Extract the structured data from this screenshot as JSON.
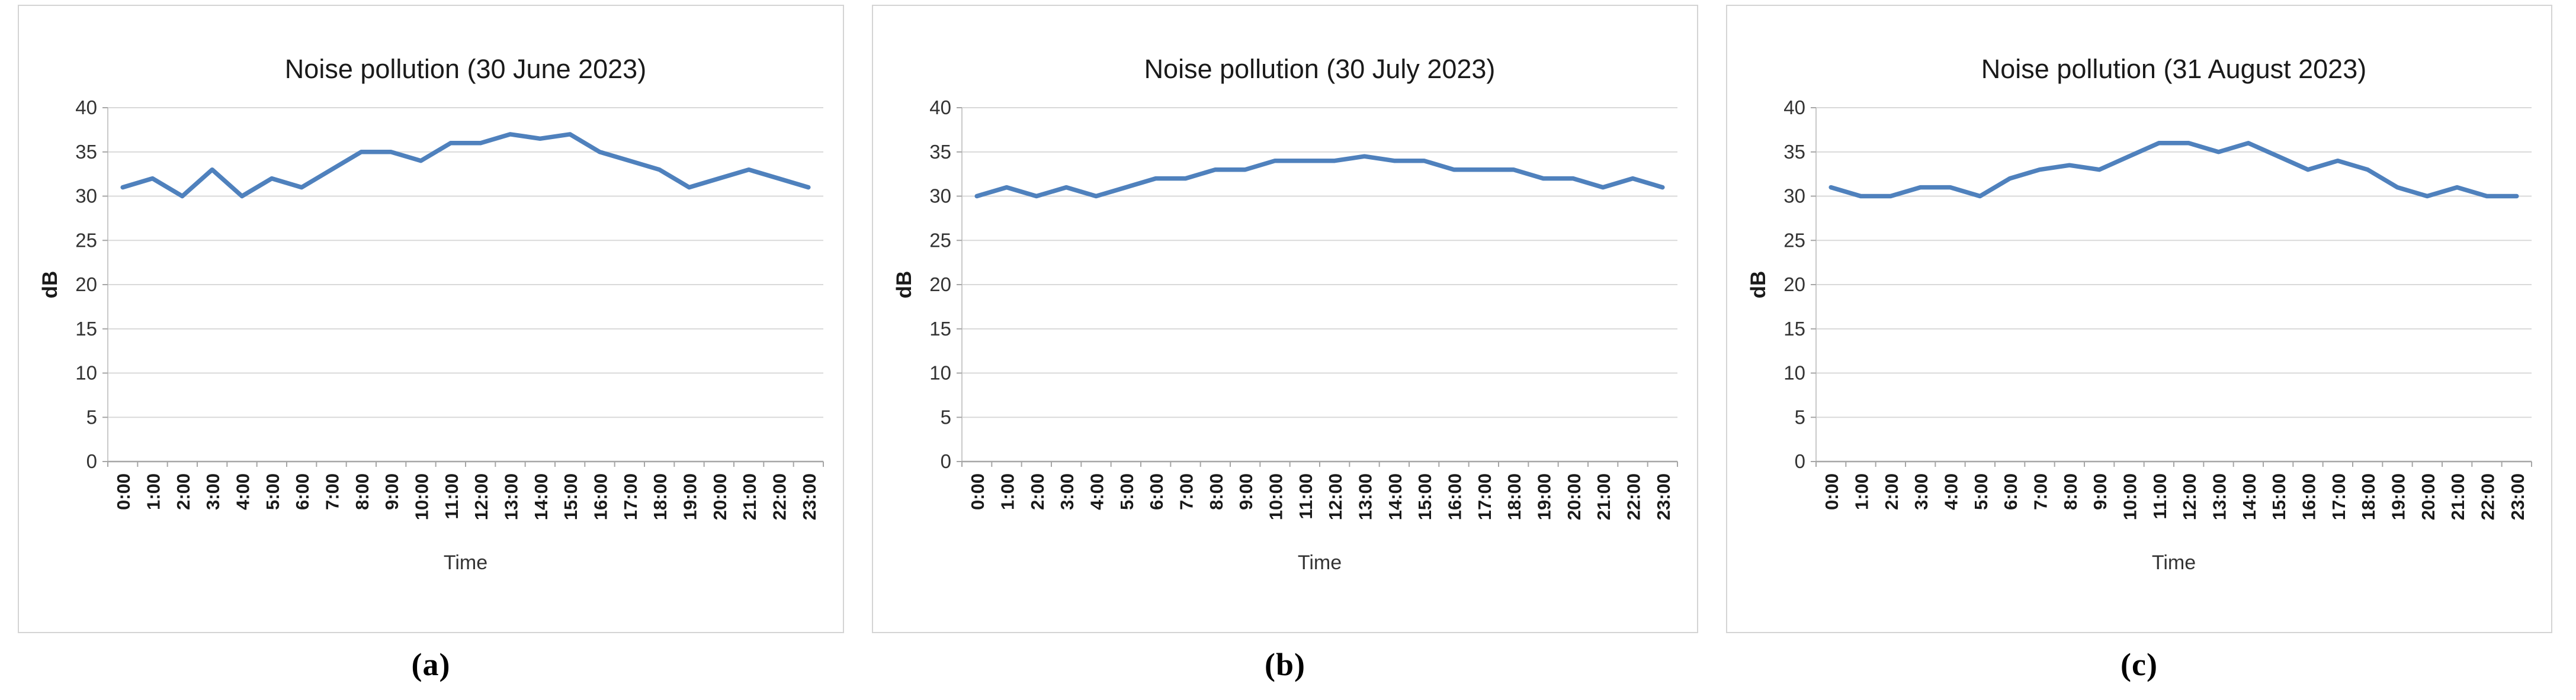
{
  "figure": {
    "background": "#ffffff",
    "captions": {
      "a": "(a)",
      "b": "(b)",
      "c": "(c)"
    }
  },
  "chart_data": [
    {
      "type": "line",
      "caption": "(a)",
      "title": "Noise pollution (30 June 2023)",
      "xlabel": "Time",
      "ylabel": "dB",
      "ylim": [
        0,
        40
      ],
      "yticks": [
        0,
        5,
        10,
        15,
        20,
        25,
        30,
        35,
        40
      ],
      "grid": true,
      "legend_position": "none",
      "line_color": "#4F81BD",
      "categories": [
        "0:00",
        "1:00",
        "2:00",
        "3:00",
        "4:00",
        "5:00",
        "6:00",
        "7:00",
        "8:00",
        "9:00",
        "10:00",
        "11:00",
        "12:00",
        "13:00",
        "14:00",
        "15:00",
        "16:00",
        "17:00",
        "18:00",
        "19:00",
        "20:00",
        "21:00",
        "22:00",
        "23:00"
      ],
      "values": [
        31,
        32,
        30,
        33,
        30,
        32,
        31,
        33,
        35,
        35,
        34,
        36,
        36,
        37,
        36.5,
        37,
        35,
        34,
        33,
        31,
        32,
        33,
        32,
        31
      ]
    },
    {
      "type": "line",
      "caption": "(b)",
      "title": "Noise pollution (30 July 2023)",
      "xlabel": "Time",
      "ylabel": "dB",
      "ylim": [
        0,
        40
      ],
      "yticks": [
        0,
        5,
        10,
        15,
        20,
        25,
        30,
        35,
        40
      ],
      "grid": true,
      "legend_position": "none",
      "line_color": "#4F81BD",
      "categories": [
        "0:00",
        "1:00",
        "2:00",
        "3:00",
        "4:00",
        "5:00",
        "6:00",
        "7:00",
        "8:00",
        "9:00",
        "10:00",
        "11:00",
        "12:00",
        "13:00",
        "14:00",
        "15:00",
        "16:00",
        "17:00",
        "18:00",
        "19:00",
        "20:00",
        "21:00",
        "22:00",
        "23:00"
      ],
      "values": [
        30,
        31,
        30,
        31,
        30,
        31,
        32,
        32,
        33,
        33,
        34,
        34,
        34,
        34.5,
        34,
        34,
        33,
        33,
        33,
        32,
        32,
        31,
        32,
        31
      ]
    },
    {
      "type": "line",
      "caption": "(c)",
      "title": "Noise pollution (31 August 2023)",
      "xlabel": "Time",
      "ylabel": "dB",
      "ylim": [
        0,
        40
      ],
      "yticks": [
        0,
        5,
        10,
        15,
        20,
        25,
        30,
        35,
        40
      ],
      "grid": true,
      "legend_position": "none",
      "line_color": "#4F81BD",
      "categories": [
        "0:00",
        "1:00",
        "2:00",
        "3:00",
        "4:00",
        "5:00",
        "6:00",
        "7:00",
        "8:00",
        "9:00",
        "10:00",
        "11:00",
        "12:00",
        "13:00",
        "14:00",
        "15:00",
        "16:00",
        "17:00",
        "18:00",
        "19:00",
        "20:00",
        "21:00",
        "22:00",
        "23:00"
      ],
      "values": [
        31,
        30,
        30,
        31,
        31,
        30,
        32,
        33,
        33.5,
        33,
        34.5,
        36,
        36,
        35,
        36,
        34.5,
        33,
        34,
        33,
        31,
        30,
        31,
        30,
        30
      ]
    }
  ]
}
